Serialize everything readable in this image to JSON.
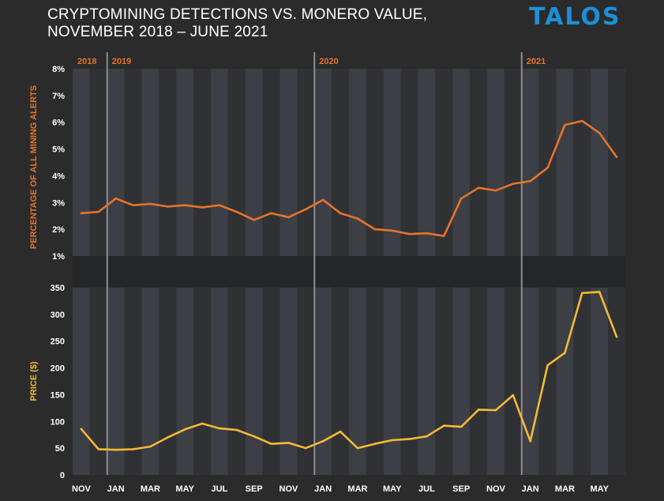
{
  "header": {
    "title_line1": "CRYPTOMINING DETECTIONS VS. MONERO VALUE,",
    "title_line2": "NOVEMBER 2018 – JUNE 2021",
    "logo": "TALOS"
  },
  "colors": {
    "background": "#2b2b2b",
    "band_light": "#3c3f45",
    "band_dark": "#2f3134",
    "year_marker": "#8b8d91",
    "alerts_line": "#e8732c",
    "price_line": "#f5b935",
    "axis_text": "#ffffff",
    "logo": "#1d8fd6"
  },
  "chart_data": [
    {
      "type": "line",
      "title": "CRYPTOMINING DETECTIONS VS. MONERO VALUE, NOVEMBER 2018 – JUNE 2021",
      "ylabel": "PERCENTAGE OF ALL MINING ALERTS",
      "ylim": [
        1,
        8
      ],
      "yticks": [
        "1%",
        "2%",
        "3%",
        "4%",
        "5%",
        "6%",
        "7%",
        "8%"
      ],
      "year_labels": [
        "2018",
        "2019",
        "2020",
        "2021"
      ],
      "grid": false,
      "x": [
        "2018-11",
        "2018-12",
        "2019-01",
        "2019-02",
        "2019-03",
        "2019-04",
        "2019-05",
        "2019-06",
        "2019-07",
        "2019-08",
        "2019-09",
        "2019-10",
        "2019-11",
        "2019-12",
        "2020-01",
        "2020-02",
        "2020-03",
        "2020-04",
        "2020-05",
        "2020-06",
        "2020-07",
        "2020-08",
        "2020-09",
        "2020-10",
        "2020-11",
        "2020-12",
        "2021-01",
        "2021-02",
        "2021-03",
        "2021-04",
        "2021-05",
        "2021-06"
      ],
      "series": [
        {
          "values": [
            2.6,
            2.65,
            3.15,
            2.9,
            2.95,
            2.85,
            2.9,
            2.82,
            2.9,
            2.65,
            2.35,
            2.6,
            2.45,
            2.75,
            3.1,
            2.6,
            2.4,
            2.0,
            1.95,
            1.82,
            1.85,
            1.75,
            3.15,
            3.55,
            3.45,
            3.7,
            3.8,
            4.3,
            5.9,
            6.05,
            5.6,
            4.7
          ]
        }
      ]
    },
    {
      "type": "line",
      "ylabel": "PRICE ($)",
      "xlabel": "",
      "ylim": [
        0,
        350
      ],
      "yticks": [
        "0",
        "50",
        "100",
        "150",
        "200",
        "250",
        "300",
        "350"
      ],
      "x_tick_labels": [
        "NOV",
        "JAN",
        "MAR",
        "MAY",
        "JUL",
        "SEP",
        "NOV",
        "JAN",
        "MAR",
        "MAY",
        "JUL",
        "SEP",
        "NOV",
        "JAN",
        "MAR",
        "MAY"
      ],
      "grid": false,
      "x": [
        "2018-11",
        "2018-12",
        "2019-01",
        "2019-02",
        "2019-03",
        "2019-04",
        "2019-05",
        "2019-06",
        "2019-07",
        "2019-08",
        "2019-09",
        "2019-10",
        "2019-11",
        "2019-12",
        "2020-01",
        "2020-02",
        "2020-03",
        "2020-04",
        "2020-05",
        "2020-06",
        "2020-07",
        "2020-08",
        "2020-09",
        "2020-10",
        "2020-11",
        "2020-12",
        "2021-01",
        "2021-02",
        "2021-03",
        "2021-04",
        "2021-05",
        "2021-06"
      ],
      "series": [
        {
          "values": [
            86,
            48,
            47,
            48,
            53,
            70,
            85,
            96,
            87,
            84,
            72,
            58,
            60,
            50,
            63,
            81,
            50,
            58,
            65,
            67,
            72,
            92,
            90,
            122,
            121,
            149,
            63,
            205,
            228,
            340,
            342,
            258
          ]
        }
      ]
    }
  ]
}
